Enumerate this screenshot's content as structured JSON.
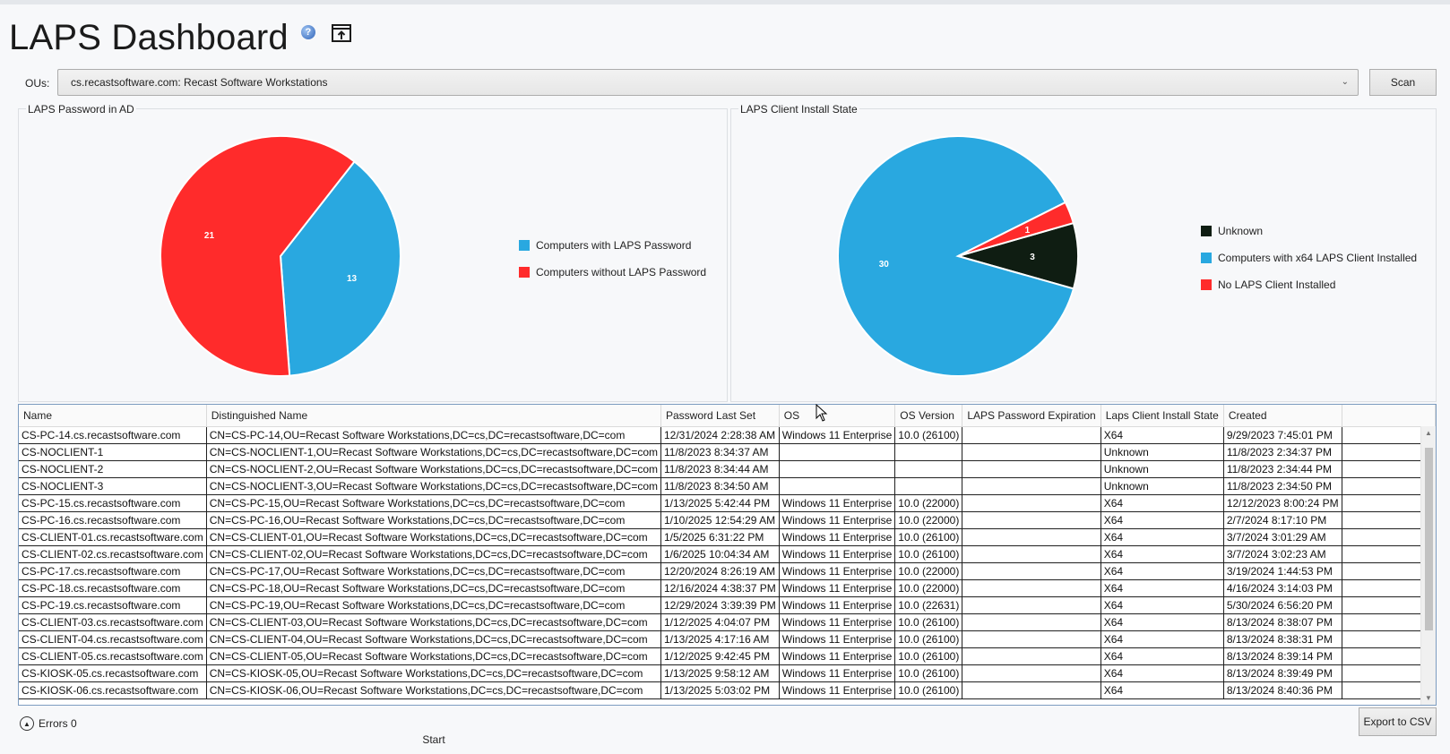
{
  "app": {
    "title": "LAPS Dashboard",
    "help_icon": "help-icon",
    "popout_icon": "popout-window-icon"
  },
  "ou_selector": {
    "label": "OUs:",
    "value": "cs.recastsoftware.com: Recast Software Workstations",
    "scan_label": "Scan"
  },
  "colors": {
    "blue": "#29a8e0",
    "red": "#ff2b2b",
    "dark": "#0f1d12"
  },
  "chart_data": [
    {
      "type": "pie",
      "title": "LAPS Password in AD",
      "slices": [
        {
          "label": "Computers with LAPS Password",
          "value": 13,
          "color": "#29a8e0"
        },
        {
          "label": "Computers without LAPS Password",
          "value": 21,
          "color": "#ff2b2b"
        }
      ],
      "legend": "right"
    },
    {
      "type": "pie",
      "title": "LAPS Client Install State",
      "slices": [
        {
          "label": "Unknown",
          "value": 3,
          "color": "#0f1d12"
        },
        {
          "label": "Computers with x64 LAPS Client Installed",
          "value": 30,
          "color": "#29a8e0"
        },
        {
          "label": "No LAPS Client Installed",
          "value": 1,
          "color": "#ff2b2b"
        }
      ],
      "legend": "right"
    }
  ],
  "table": {
    "columns": [
      "Name",
      "Distinguished Name",
      "Password Last Set",
      "OS",
      "OS Version",
      "LAPS Password Expiration",
      "Laps Client Install State",
      "Created"
    ],
    "rows": [
      [
        "CS-PC-14.cs.recastsoftware.com",
        "CN=CS-PC-14,OU=Recast Software Workstations,DC=cs,DC=recastsoftware,DC=com",
        "12/31/2024 2:28:38 AM",
        "Windows 11 Enterprise",
        "10.0 (26100)",
        "",
        "X64",
        "9/29/2023 7:45:01 PM"
      ],
      [
        "CS-NOCLIENT-1",
        "CN=CS-NOCLIENT-1,OU=Recast Software Workstations,DC=cs,DC=recastsoftware,DC=com",
        "11/8/2023 8:34:37 AM",
        "",
        "",
        "",
        "Unknown",
        "11/8/2023 2:34:37 PM"
      ],
      [
        "CS-NOCLIENT-2",
        "CN=CS-NOCLIENT-2,OU=Recast Software Workstations,DC=cs,DC=recastsoftware,DC=com",
        "11/8/2023 8:34:44 AM",
        "",
        "",
        "",
        "Unknown",
        "11/8/2023 2:34:44 PM"
      ],
      [
        "CS-NOCLIENT-3",
        "CN=CS-NOCLIENT-3,OU=Recast Software Workstations,DC=cs,DC=recastsoftware,DC=com",
        "11/8/2023 8:34:50 AM",
        "",
        "",
        "",
        "Unknown",
        "11/8/2023 2:34:50 PM"
      ],
      [
        "CS-PC-15.cs.recastsoftware.com",
        "CN=CS-PC-15,OU=Recast Software Workstations,DC=cs,DC=recastsoftware,DC=com",
        "1/13/2025 5:42:44 PM",
        "Windows 11 Enterprise",
        "10.0 (22000)",
        "",
        "X64",
        "12/12/2023 8:00:24 PM"
      ],
      [
        "CS-PC-16.cs.recastsoftware.com",
        "CN=CS-PC-16,OU=Recast Software Workstations,DC=cs,DC=recastsoftware,DC=com",
        "1/10/2025 12:54:29 AM",
        "Windows 11 Enterprise",
        "10.0 (22000)",
        "",
        "X64",
        "2/7/2024 8:17:10 PM"
      ],
      [
        "CS-CLIENT-01.cs.recastsoftware.com",
        "CN=CS-CLIENT-01,OU=Recast Software Workstations,DC=cs,DC=recastsoftware,DC=com",
        "1/5/2025 6:31:22 PM",
        "Windows 11 Enterprise",
        "10.0 (26100)",
        "",
        "X64",
        "3/7/2024 3:01:29 AM"
      ],
      [
        "CS-CLIENT-02.cs.recastsoftware.com",
        "CN=CS-CLIENT-02,OU=Recast Software Workstations,DC=cs,DC=recastsoftware,DC=com",
        "1/6/2025 10:04:34 AM",
        "Windows 11 Enterprise",
        "10.0 (26100)",
        "",
        "X64",
        "3/7/2024 3:02:23 AM"
      ],
      [
        "CS-PC-17.cs.recastsoftware.com",
        "CN=CS-PC-17,OU=Recast Software Workstations,DC=cs,DC=recastsoftware,DC=com",
        "12/20/2024 8:26:19 AM",
        "Windows 11 Enterprise",
        "10.0 (22000)",
        "",
        "X64",
        "3/19/2024 1:44:53 PM"
      ],
      [
        "CS-PC-18.cs.recastsoftware.com",
        "CN=CS-PC-18,OU=Recast Software Workstations,DC=cs,DC=recastsoftware,DC=com",
        "12/16/2024 4:38:37 PM",
        "Windows 11 Enterprise",
        "10.0 (22000)",
        "",
        "X64",
        "4/16/2024 3:14:03 PM"
      ],
      [
        "CS-PC-19.cs.recastsoftware.com",
        "CN=CS-PC-19,OU=Recast Software Workstations,DC=cs,DC=recastsoftware,DC=com",
        "12/29/2024 3:39:39 PM",
        "Windows 11 Enterprise",
        "10.0 (22631)",
        "",
        "X64",
        "5/30/2024 6:56:20 PM"
      ],
      [
        "CS-CLIENT-03.cs.recastsoftware.com",
        "CN=CS-CLIENT-03,OU=Recast Software Workstations,DC=cs,DC=recastsoftware,DC=com",
        "1/12/2025 4:04:07 PM",
        "Windows 11 Enterprise",
        "10.0 (26100)",
        "",
        "X64",
        "8/13/2024 8:38:07 PM"
      ],
      [
        "CS-CLIENT-04.cs.recastsoftware.com",
        "CN=CS-CLIENT-04,OU=Recast Software Workstations,DC=cs,DC=recastsoftware,DC=com",
        "1/13/2025 4:17:16 AM",
        "Windows 11 Enterprise",
        "10.0 (26100)",
        "",
        "X64",
        "8/13/2024 8:38:31 PM"
      ],
      [
        "CS-CLIENT-05.cs.recastsoftware.com",
        "CN=CS-CLIENT-05,OU=Recast Software Workstations,DC=cs,DC=recastsoftware,DC=com",
        "1/12/2025 9:42:45 PM",
        "Windows 11 Enterprise",
        "10.0 (26100)",
        "",
        "X64",
        "8/13/2024 8:39:14 PM"
      ],
      [
        "CS-KIOSK-05.cs.recastsoftware.com",
        "CN=CS-KIOSK-05,OU=Recast Software Workstations,DC=cs,DC=recastsoftware,DC=com",
        "1/13/2025 9:58:12 AM",
        "Windows 11 Enterprise",
        "10.0 (26100)",
        "",
        "X64",
        "8/13/2024 8:39:49 PM"
      ],
      [
        "CS-KIOSK-06.cs.recastsoftware.com",
        "CN=CS-KIOSK-06,OU=Recast Software Workstations,DC=cs,DC=recastsoftware,DC=com",
        "1/13/2025 5:03:02 PM",
        "Windows 11 Enterprise",
        "10.0 (26100)",
        "",
        "X64",
        "8/13/2024 8:40:36 PM"
      ]
    ]
  },
  "footer": {
    "errors_label": "Errors 0",
    "start_label": "Start",
    "export_label": "Export to CSV"
  }
}
